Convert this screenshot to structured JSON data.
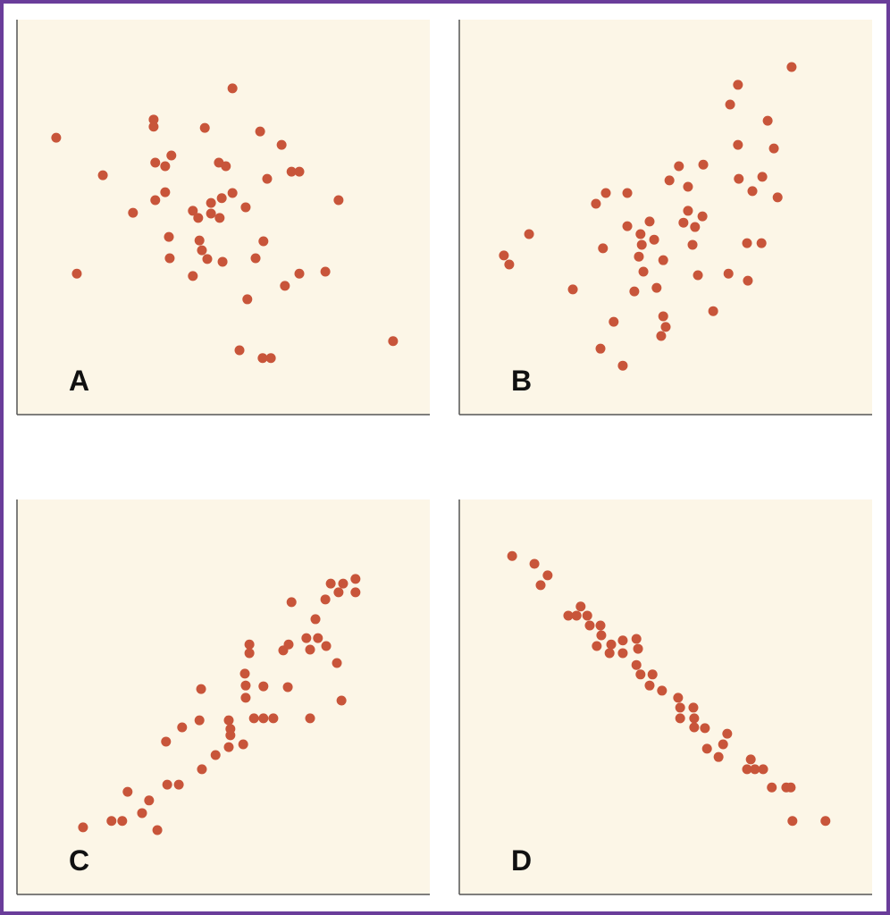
{
  "chart_data": [
    {
      "type": "scatter",
      "label": "A",
      "color": "#c8553a",
      "xlim": [
        0,
        100
      ],
      "ylim": [
        0,
        100
      ],
      "x": [
        9.5,
        14.5,
        20.8,
        28.1,
        33.1,
        33.1,
        33.5,
        33.5,
        35.9,
        35.9,
        37.4,
        36.8,
        37.0,
        42.6,
        42.6,
        43.9,
        44.2,
        44.8,
        46.1,
        47.0,
        47.0,
        49.1,
        49.6,
        48.9,
        50.6,
        52.2,
        52.2,
        45.5,
        55.4,
        49.8,
        57.8,
        59.7,
        60.6,
        58.9,
        64.1,
        66.5,
        68.4,
        55.8,
        64.9,
        68.4,
        74.7,
        77.9,
        53.9,
        59.5,
        61.5,
        91.1
      ],
      "values": [
        70.1,
        35.7,
        60.6,
        51.1,
        74.7,
        72.9,
        63.8,
        54.3,
        62.9,
        56.3,
        65.6,
        45.0,
        39.6,
        35.1,
        51.6,
        49.8,
        44.1,
        41.6,
        39.4,
        53.6,
        50.9,
        49.8,
        54.8,
        63.8,
        62.9,
        56.1,
        82.6,
        72.6,
        52.5,
        38.7,
        39.6,
        43.9,
        59.7,
        71.7,
        68.3,
        61.5,
        61.5,
        29.2,
        32.6,
        35.7,
        36.2,
        54.3,
        16.3,
        14.3,
        14.3,
        18.6
      ]
    },
    {
      "type": "scatter",
      "label": "B",
      "color": "#c8553a",
      "xlim": [
        0,
        100
      ],
      "ylim": [
        0,
        100
      ],
      "x": [
        10.8,
        12.1,
        16.9,
        27.5,
        33.1,
        35.5,
        40.7,
        34.8,
        40.7,
        43.9,
        44.2,
        43.5,
        46.1,
        47.2,
        44.6,
        49.4,
        42.4,
        47.8,
        37.4,
        34.2,
        39.6,
        49.4,
        50.0,
        48.9,
        50.9,
        53.2,
        55.4,
        59.1,
        54.3,
        55.4,
        57.1,
        58.9,
        56.5,
        57.8,
        61.5,
        65.2,
        65.6,
        67.5,
        80.5,
        74.7,
        76.2,
        67.5,
        73.4,
        67.7,
        71.0,
        77.1,
        69.7,
        73.2,
        69.9
      ],
      "values": [
        40.3,
        38.0,
        45.7,
        31.7,
        53.4,
        56.1,
        56.1,
        42.1,
        47.7,
        45.7,
        43.0,
        40.0,
        48.9,
        44.3,
        36.2,
        39.1,
        31.2,
        32.1,
        23.5,
        16.7,
        12.4,
        24.9,
        22.2,
        19.9,
        59.3,
        62.9,
        57.7,
        63.3,
        48.6,
        51.6,
        47.5,
        50.2,
        43.0,
        35.3,
        26.2,
        35.7,
        78.5,
        83.5,
        88.0,
        74.4,
        67.4,
        68.3,
        60.2,
        59.7,
        56.6,
        55.0,
        43.4,
        43.4,
        33.9
      ]
    },
    {
      "type": "scatter",
      "label": "C",
      "color": "#c8553a",
      "xlim": [
        0,
        100
      ],
      "ylim": [
        0,
        100
      ],
      "x": [
        16.0,
        22.9,
        25.5,
        26.8,
        30.3,
        32.0,
        34.0,
        36.4,
        39.2,
        36.1,
        40.0,
        44.2,
        44.6,
        44.8,
        48.1,
        51.3,
        51.3,
        51.7,
        51.7,
        54.8,
        55.2,
        55.4,
        55.4,
        56.3,
        56.3,
        57.4,
        59.7,
        59.7,
        62.1,
        64.5,
        65.8,
        65.6,
        66.5,
        70.1,
        71.0,
        72.9,
        72.3,
        71.0,
        74.9,
        74.7,
        76.0,
        77.5,
        78.6,
        77.9,
        79.0,
        82.0,
        82.0
      ],
      "values": [
        17.0,
        18.6,
        18.6,
        26.0,
        20.6,
        23.8,
        16.3,
        27.8,
        27.8,
        38.7,
        42.3,
        44.1,
        52.0,
        31.7,
        35.3,
        37.3,
        44.1,
        41.9,
        40.3,
        38.0,
        55.9,
        52.9,
        49.8,
        63.3,
        61.1,
        44.6,
        52.7,
        44.6,
        44.6,
        61.8,
        63.3,
        52.5,
        74.0,
        64.9,
        62.0,
        64.9,
        69.7,
        44.6,
        62.9,
        74.7,
        78.7,
        58.6,
        49.1,
        76.5,
        78.7,
        79.9,
        76.5
      ]
    },
    {
      "type": "scatter",
      "label": "D",
      "color": "#c8553a",
      "xlim": [
        0,
        100
      ],
      "ylim": [
        0,
        100
      ],
      "x": [
        12.8,
        18.2,
        21.4,
        19.7,
        26.4,
        28.4,
        29.4,
        31.0,
        31.6,
        34.2,
        34.4,
        33.3,
        36.4,
        36.8,
        39.6,
        39.6,
        42.9,
        43.3,
        42.9,
        43.9,
        46.1,
        46.8,
        49.1,
        53.0,
        53.5,
        53.5,
        56.7,
        56.9,
        56.9,
        59.5,
        60.0,
        62.8,
        63.9,
        64.9,
        70.6,
        69.7,
        71.6,
        73.6,
        75.7,
        79.2,
        80.3,
        80.7,
        88.7
      ],
      "values": [
        85.7,
        83.7,
        80.8,
        78.3,
        70.6,
        70.6,
        72.9,
        70.6,
        68.1,
        68.1,
        65.6,
        62.9,
        61.1,
        63.3,
        64.3,
        61.1,
        64.7,
        62.2,
        58.1,
        55.7,
        52.9,
        55.7,
        51.6,
        49.8,
        47.3,
        44.6,
        47.3,
        44.6,
        42.3,
        42.1,
        36.9,
        34.8,
        38.0,
        40.7,
        34.2,
        31.7,
        31.7,
        31.7,
        27.1,
        27.1,
        27.1,
        18.6,
        18.6
      ]
    }
  ]
}
